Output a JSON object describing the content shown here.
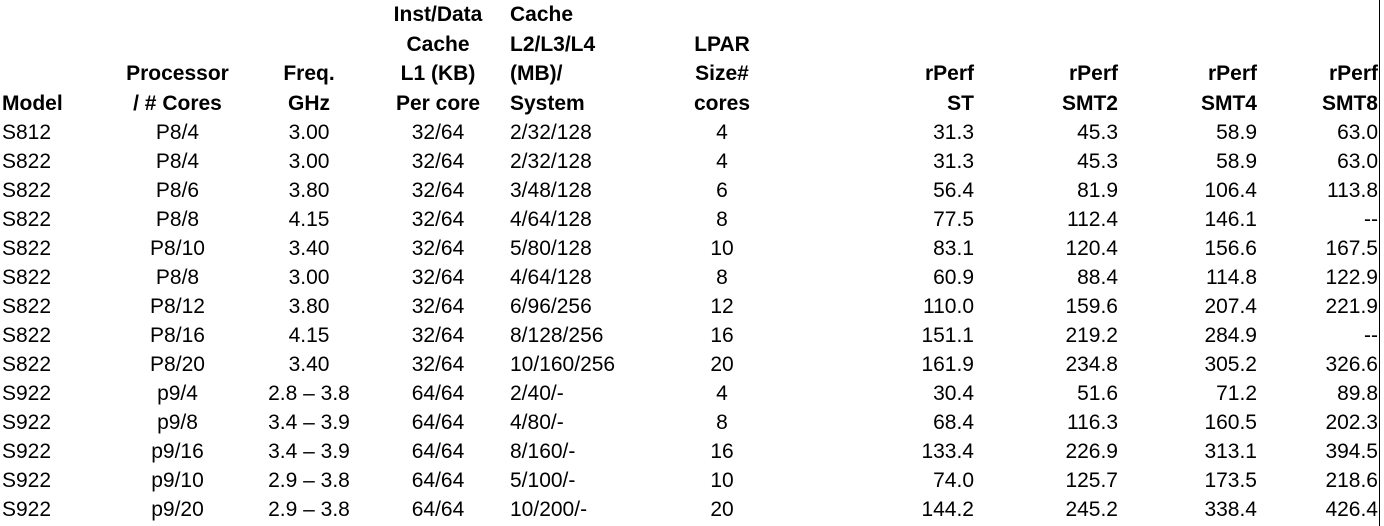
{
  "columns": [
    {
      "key": "model",
      "lines": [
        "Model"
      ],
      "align": "left"
    },
    {
      "key": "processor",
      "lines": [
        "Processor",
        "/ # Cores"
      ],
      "align": "center"
    },
    {
      "key": "freq",
      "lines": [
        "Freq.",
        "GHz"
      ],
      "align": "center"
    },
    {
      "key": "l1",
      "lines": [
        "Inst/Data",
        "Cache",
        "L1 (KB)",
        "Per core"
      ],
      "align": "center"
    },
    {
      "key": "cache",
      "lines": [
        "Cache",
        "L2/L3/L4",
        "(MB)/",
        "System"
      ],
      "align": "left"
    },
    {
      "key": "lpar",
      "lines": [
        "LPAR",
        "Size#",
        "cores"
      ],
      "align": "center"
    },
    {
      "key": "st",
      "lines": [
        "rPerf",
        "ST"
      ],
      "align": "right"
    },
    {
      "key": "smt2",
      "lines": [
        "rPerf",
        "SMT2"
      ],
      "align": "right"
    },
    {
      "key": "smt4",
      "lines": [
        "rPerf",
        "SMT4"
      ],
      "align": "right"
    },
    {
      "key": "smt8",
      "lines": [
        "rPerf",
        "SMT8"
      ],
      "align": "right"
    }
  ],
  "rows": [
    [
      "S812",
      "P8/4",
      "3.00",
      "32/64",
      "2/32/128",
      "4",
      "31.3",
      "45.3",
      "58.9",
      "63.0"
    ],
    [
      "S822",
      "P8/4",
      "3.00",
      "32/64",
      "2/32/128",
      "4",
      "31.3",
      "45.3",
      "58.9",
      "63.0"
    ],
    [
      "S822",
      "P8/6",
      "3.80",
      "32/64",
      "3/48/128",
      "6",
      "56.4",
      "81.9",
      "106.4",
      "113.8"
    ],
    [
      "S822",
      "P8/8",
      "4.15",
      "32/64",
      "4/64/128",
      "8",
      "77.5",
      "112.4",
      "146.1",
      "--"
    ],
    [
      "S822",
      "P8/10",
      "3.40",
      "32/64",
      "5/80/128",
      "10",
      "83.1",
      "120.4",
      "156.6",
      "167.5"
    ],
    [
      "S822",
      "P8/8",
      "3.00",
      "32/64",
      "4/64/128",
      "8",
      "60.9",
      "88.4",
      "114.8",
      "122.9"
    ],
    [
      "S822",
      "P8/12",
      "3.80",
      "32/64",
      "6/96/256",
      "12",
      "110.0",
      "159.6",
      "207.4",
      "221.9"
    ],
    [
      "S822",
      "P8/16",
      "4.15",
      "32/64",
      "8/128/256",
      "16",
      "151.1",
      "219.2",
      "284.9",
      "--"
    ],
    [
      "S822",
      "P8/20",
      "3.40",
      "32/64",
      "10/160/256",
      "20",
      "161.9",
      "234.8",
      "305.2",
      "326.6"
    ],
    [
      "S922",
      "p9/4",
      "2.8 – 3.8",
      "64/64",
      "2/40/-",
      "4",
      "30.4",
      "51.6",
      "71.2",
      "89.8"
    ],
    [
      "S922",
      "p9/8",
      "3.4 – 3.9",
      "64/64",
      "4/80/-",
      "8",
      "68.4",
      "116.3",
      "160.5",
      "202.3"
    ],
    [
      "S922",
      "p9/16",
      "3.4 – 3.9",
      "64/64",
      "8/160/-",
      "16",
      "133.4",
      "226.9",
      "313.1",
      "394.5"
    ],
    [
      "S922",
      "p9/10",
      "2.9 – 3.8",
      "64/64",
      "5/100/-",
      "10",
      "74.0",
      "125.7",
      "173.5",
      "218.6"
    ],
    [
      "S922",
      "p9/20",
      "2.9 – 3.8",
      "64/64",
      "10/200/-",
      "20",
      "144.2",
      "245.2",
      "338.4",
      "426.4"
    ]
  ],
  "colors": {
    "text": "#000000",
    "background": "#ffffff",
    "gridline": "#000000"
  }
}
